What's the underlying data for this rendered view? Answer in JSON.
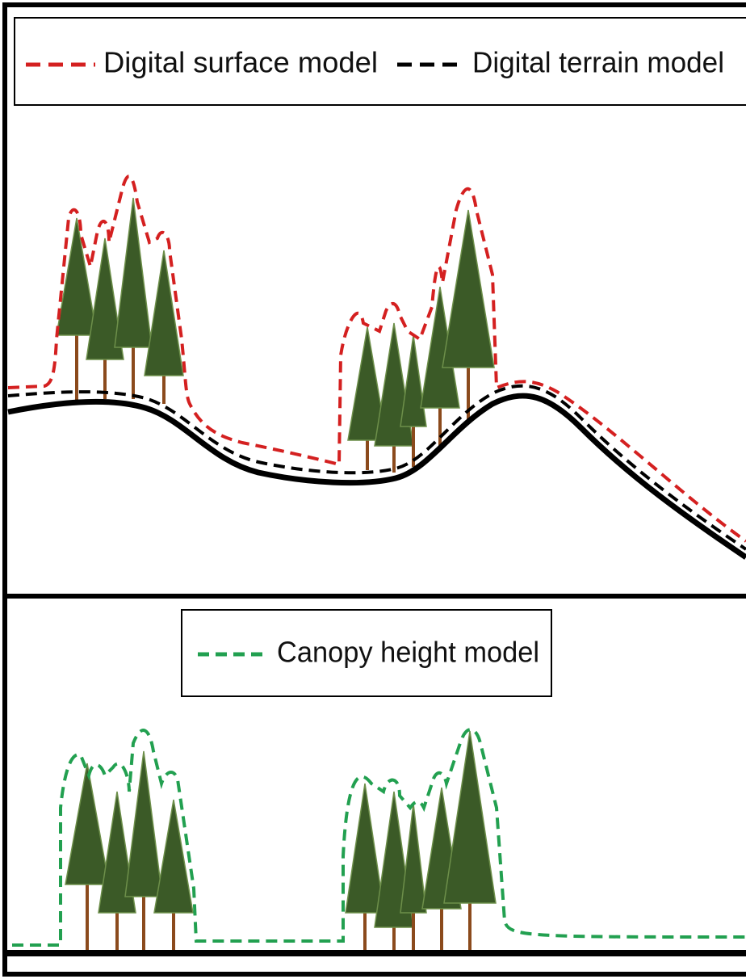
{
  "legend_top": [
    {
      "label": "Digital surface model"
    },
    {
      "label": "Digital terrain model"
    }
  ],
  "legend_bottom": {
    "label": "Canopy height model"
  }
}
